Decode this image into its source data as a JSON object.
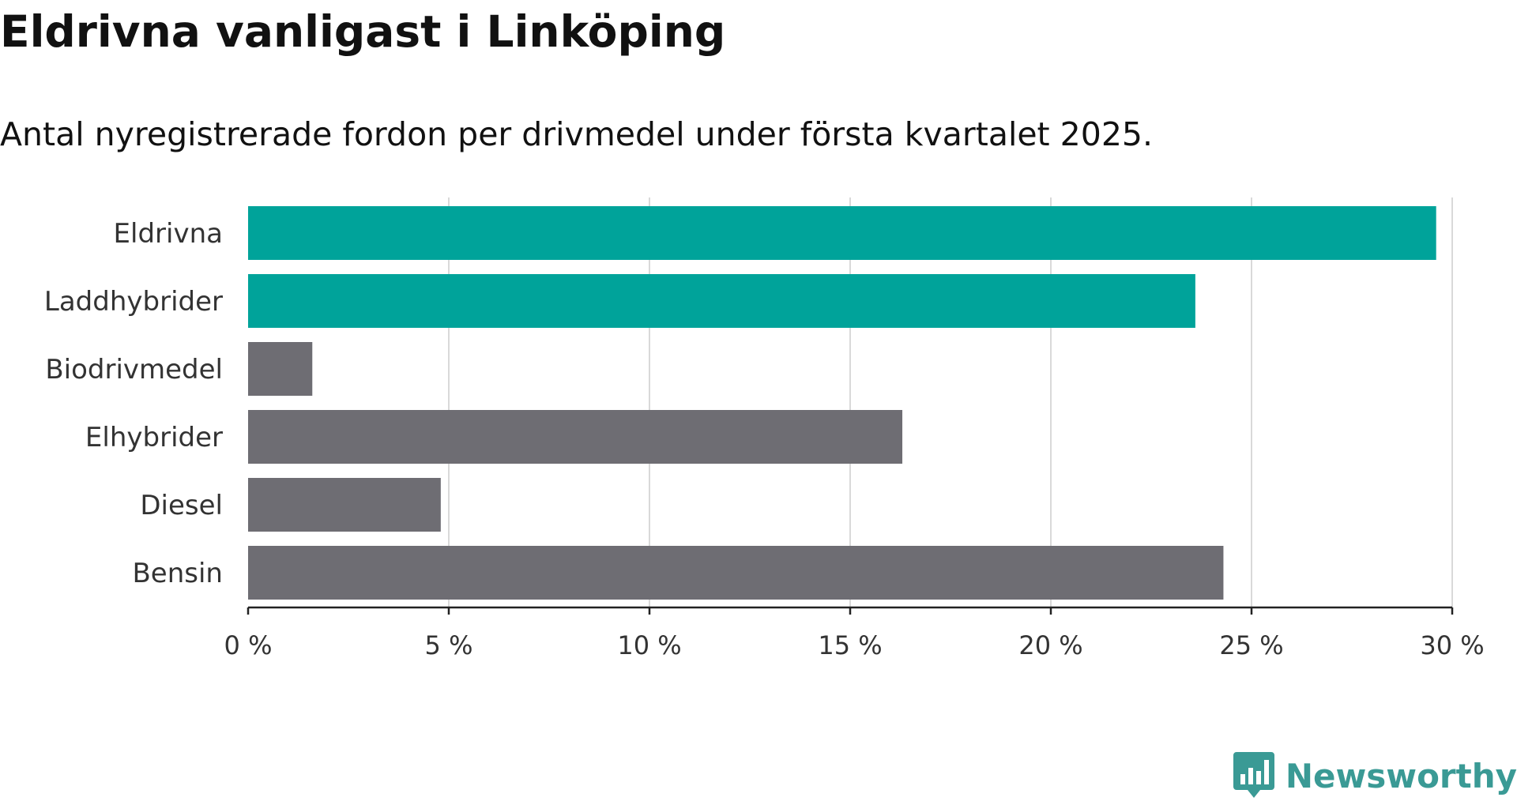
{
  "title": "Eldrivna vanligast i Linköping",
  "subtitle": "Antal nyregistrerade fordon per drivmedel under första kvartalet 2025.",
  "brand": {
    "name": "Newsworthy",
    "logo_icon": "newsworthy-chart-bubble-icon",
    "color": "#3a9a95"
  },
  "colors": {
    "highlight": "#00a39a",
    "default": "#6e6d73",
    "grid": "#d9d9d9",
    "axis": "#222222",
    "text": "#111111"
  },
  "chart_data": {
    "type": "bar",
    "orientation": "horizontal",
    "categories": [
      "Eldrivna",
      "Laddhybrider",
      "Biodrivmedel",
      "Elhybrider",
      "Diesel",
      "Bensin"
    ],
    "values": [
      29.6,
      23.6,
      1.6,
      16.3,
      4.8,
      24.3
    ],
    "highlighted": [
      true,
      true,
      false,
      false,
      false,
      false
    ],
    "unit": "%",
    "xlim": [
      0,
      30
    ],
    "x_ticks": [
      0,
      5,
      10,
      15,
      20,
      25,
      30
    ],
    "x_tick_labels": [
      "0 %",
      "5 %",
      "10 %",
      "15 %",
      "20 %",
      "25 %",
      "30 %"
    ],
    "grid": "vertical",
    "legend": "none"
  }
}
